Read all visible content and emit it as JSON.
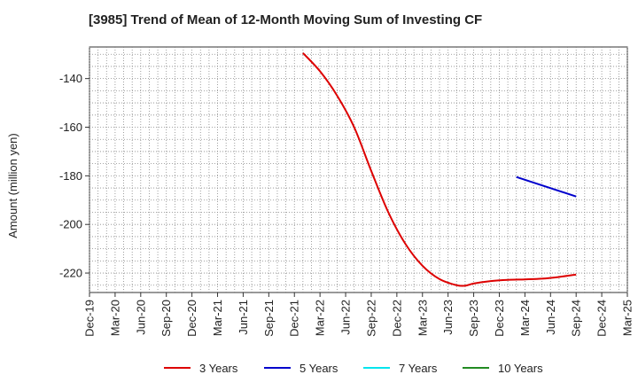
{
  "title": "[3985]  Trend of Mean of 12-Month Moving Sum of Investing CF",
  "chart_data": {
    "type": "line",
    "title": "[3985]  Trend of Mean of 12-Month Moving Sum of Investing CF",
    "ylabel": "Amount (million yen)",
    "xlabel": "",
    "ylim": [
      -228,
      -127
    ],
    "y_ticks": [
      -140,
      -160,
      -180,
      -200,
      -220
    ],
    "x_tick_labels": [
      "Dec-19",
      "Mar-20",
      "Jun-20",
      "Sep-20",
      "Dec-20",
      "Mar-21",
      "Jun-21",
      "Sep-21",
      "Dec-21",
      "Mar-22",
      "Jun-22",
      "Sep-22",
      "Dec-22",
      "Mar-23",
      "Jun-23",
      "Sep-23",
      "Dec-23",
      "Mar-24",
      "Jun-24",
      "Sep-24",
      "Dec-24",
      "Mar-25"
    ],
    "grid": true,
    "legend_position": "bottom",
    "series": [
      {
        "name": "3 Years",
        "color": "#dd0000",
        "x": [
          "Jan-22",
          "Mar-22",
          "May-22",
          "Jul-22",
          "Sep-22",
          "Nov-22",
          "Jan-23",
          "Mar-23",
          "May-23",
          "Jul-23",
          "Aug-23",
          "Sep-23",
          "Nov-23",
          "Jan-24",
          "Mar-24",
          "May-24",
          "Jul-24",
          "Sep-24"
        ],
        "values": [
          -129.5,
          -137,
          -147,
          -160,
          -178,
          -195,
          -208,
          -217,
          -222.5,
          -225,
          -225.2,
          -224.3,
          -223.3,
          -222.8,
          -222.6,
          -222.3,
          -221.6,
          -220.6
        ]
      },
      {
        "name": "5 Years",
        "color": "#0000cc",
        "x": [
          "Feb-24",
          "Sep-24"
        ],
        "values": [
          -180.5,
          -188.5
        ]
      },
      {
        "name": "7 Years",
        "color": "#00e5ee",
        "x": [],
        "values": []
      },
      {
        "name": "10 Years",
        "color": "#228b22",
        "x": [],
        "values": []
      }
    ]
  }
}
